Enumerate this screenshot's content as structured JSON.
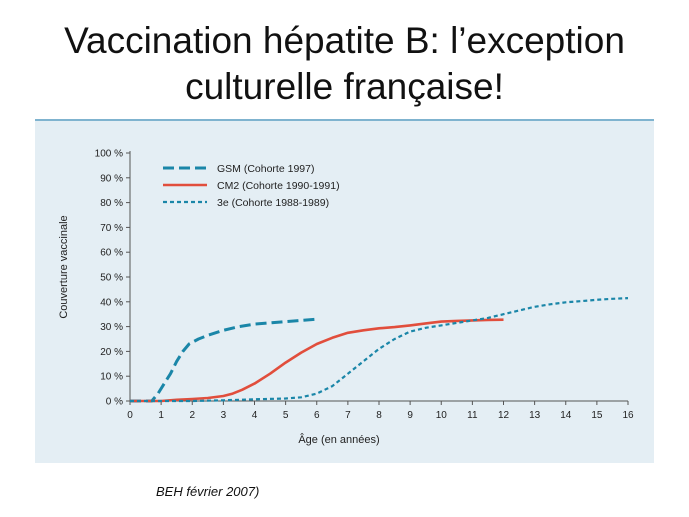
{
  "slide": {
    "title_line1": "Vaccination hépatite B: l’exception",
    "title_line2": "culturelle française!",
    "source": "BEH février 2007)"
  },
  "chart_data": {
    "type": "line",
    "title": "",
    "xlabel": "Âge (en années)",
    "ylabel": "Couverture vaccinale",
    "xlim": [
      0,
      16
    ],
    "ylim": [
      0,
      100
    ],
    "x_ticks": [
      0,
      1,
      2,
      3,
      4,
      5,
      6,
      7,
      8,
      9,
      10,
      11,
      12,
      13,
      14,
      15,
      16
    ],
    "y_ticks": [
      0,
      10,
      20,
      30,
      40,
      50,
      60,
      70,
      80,
      90,
      100
    ],
    "y_tick_labels": [
      "0 %",
      "10 %",
      "20 %",
      "30 %",
      "40 %",
      "50 %",
      "60 %",
      "70 %",
      "80 %",
      "90 %",
      "100 %"
    ],
    "grid": false,
    "legend_position": "top-left",
    "series": [
      {
        "name": "GSM (Cohorte 1997)",
        "color": "#1a86a8",
        "style": "long-dash",
        "x": [
          0,
          0.5,
          0.7,
          0.9,
          1.1,
          1.3,
          1.5,
          1.7,
          1.9,
          2.2,
          2.5,
          3.0,
          3.5,
          4.0,
          4.5,
          5.0,
          5.5,
          6.0
        ],
        "y": [
          0,
          0,
          0,
          3,
          7,
          11,
          16,
          20,
          23,
          25,
          26.5,
          28.5,
          30,
          31,
          31.5,
          32,
          32.5,
          33
        ]
      },
      {
        "name": "CM2 (Cohorte 1990-1991)",
        "color": "#e14e3c",
        "style": "solid",
        "x": [
          0,
          1,
          1.5,
          2,
          2.5,
          3,
          3.3,
          3.6,
          4,
          4.5,
          5,
          5.5,
          6,
          6.5,
          7,
          7.5,
          8,
          8.5,
          9,
          9.5,
          10,
          10.5,
          11,
          11.5,
          12
        ],
        "y": [
          0,
          0,
          0.5,
          0.8,
          1.2,
          2,
          3,
          4.5,
          7,
          11,
          15.5,
          19.5,
          23,
          25.5,
          27.5,
          28.5,
          29.3,
          29.8,
          30.5,
          31.3,
          32,
          32.3,
          32.5,
          32.7,
          32.8
        ]
      },
      {
        "name": "3e (Cohorte 1988-1989)",
        "color": "#1a86a8",
        "style": "short-dash",
        "x": [
          0,
          2,
          3,
          4,
          5,
          5.5,
          6,
          6.5,
          7,
          7.5,
          8,
          8.5,
          9,
          9.5,
          10,
          10.5,
          11,
          11.5,
          12,
          12.5,
          13,
          13.5,
          14,
          14.5,
          15,
          15.5,
          16
        ],
        "y": [
          0,
          0,
          0.3,
          0.7,
          1,
          1.5,
          3,
          6,
          11,
          16,
          21,
          25,
          28,
          29.5,
          30.5,
          31.5,
          32.5,
          33.5,
          35,
          36.5,
          38,
          39,
          39.8,
          40.3,
          40.8,
          41.2,
          41.5
        ]
      }
    ]
  }
}
